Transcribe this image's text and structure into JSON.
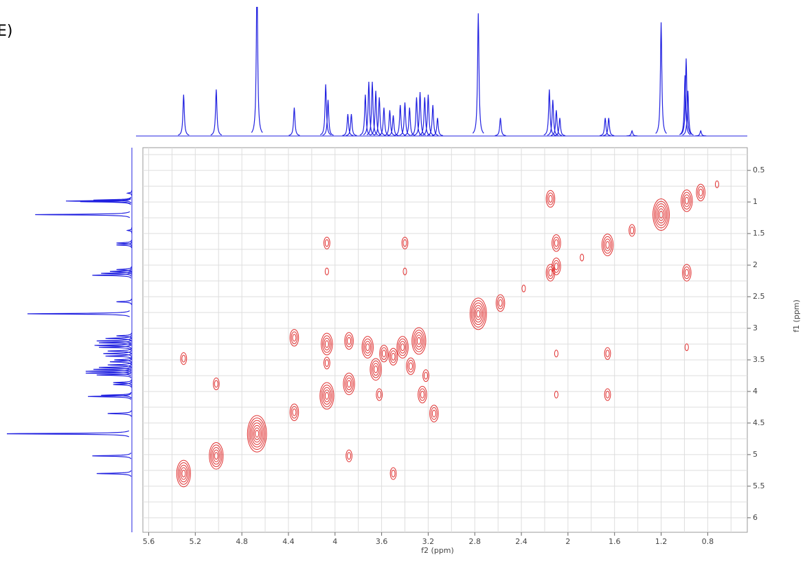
{
  "chart_data": {
    "type": "contour",
    "title": "E)",
    "x_label": "f2 (ppm)",
    "y_label": "f1 (ppm)",
    "xlim": [
      5.65,
      0.46
    ],
    "ylim": [
      6.23,
      0.14
    ],
    "xticks": [
      5.6,
      5.2,
      4.8,
      4.4,
      4.0,
      3.6,
      3.2,
      2.8,
      2.4,
      2.0,
      1.6,
      1.2,
      0.8
    ],
    "xgrid": [
      5.6,
      5.4,
      5.2,
      5.0,
      4.8,
      4.6,
      4.4,
      4.2,
      4.0,
      3.8,
      3.6,
      3.4,
      3.2,
      3.0,
      2.8,
      2.6,
      2.4,
      2.2,
      2.0,
      1.8,
      1.6,
      1.4,
      1.2,
      1.0,
      0.8,
      0.6
    ],
    "yticks": [
      0.5,
      1.0,
      1.5,
      2.0,
      2.5,
      3.0,
      3.5,
      4.0,
      4.5,
      5.0,
      5.5,
      6.0
    ],
    "ygrid": [
      0.25,
      0.5,
      0.75,
      1.0,
      1.25,
      1.5,
      1.75,
      2.0,
      2.25,
      2.5,
      2.75,
      3.0,
      3.25,
      3.5,
      3.75,
      4.0,
      4.25,
      4.5,
      4.75,
      5.0,
      5.25,
      5.5,
      5.75,
      6.0
    ],
    "grid": true,
    "contour_color": "#e03030",
    "spectrum_color": "#2020e0",
    "spectrum": {
      "ppm": [
        5.3,
        5.02,
        4.67,
        4.35,
        4.08,
        4.06,
        3.89,
        3.86,
        3.74,
        3.71,
        3.68,
        3.65,
        3.62,
        3.58,
        3.53,
        3.5,
        3.44,
        3.4,
        3.36,
        3.3,
        3.27,
        3.23,
        3.2,
        3.16,
        3.12,
        2.77,
        2.58,
        2.16,
        2.13,
        2.1,
        2.07,
        1.68,
        1.65,
        1.45,
        1.2,
        0.995,
        0.985,
        0.97,
        0.86
      ],
      "intensity": [
        32,
        36,
        120,
        22,
        40,
        28,
        17,
        17,
        32,
        42,
        42,
        35,
        30,
        22,
        20,
        16,
        24,
        26,
        22,
        30,
        34,
        30,
        32,
        24,
        14,
        95,
        14,
        36,
        28,
        20,
        14,
        14,
        14,
        4,
        88,
        47,
        60,
        35,
        4
      ]
    },
    "cross_peaks": {
      "f2": [
        5.3,
        5.3,
        5.02,
        5.02,
        4.67,
        4.35,
        4.35,
        4.07,
        4.07,
        4.07,
        4.07,
        4.07,
        3.88,
        3.88,
        3.88,
        3.72,
        3.65,
        3.58,
        3.5,
        3.42,
        3.35,
        3.28,
        3.62,
        3.4,
        3.4,
        3.5,
        3.25,
        3.22,
        3.15,
        2.77,
        2.58,
        2.38,
        2.15,
        2.15,
        2.1,
        2.1,
        2.1,
        2.1,
        1.88,
        1.66,
        1.66,
        1.66,
        1.45,
        1.2,
        0.98,
        0.98,
        0.98,
        0.86,
        0.72
      ],
      "f1": [
        5.3,
        3.48,
        5.02,
        3.88,
        4.67,
        3.15,
        4.33,
        1.65,
        2.1,
        3.25,
        3.55,
        4.07,
        3.2,
        3.88,
        5.02,
        3.3,
        3.65,
        3.4,
        3.45,
        3.3,
        3.6,
        3.2,
        4.05,
        1.65,
        2.1,
        5.3,
        4.05,
        3.75,
        4.35,
        2.77,
        2.6,
        2.37,
        0.95,
        2.12,
        1.65,
        2.02,
        3.4,
        4.05,
        1.88,
        1.68,
        3.4,
        4.05,
        1.45,
        1.2,
        0.98,
        2.12,
        3.3,
        0.85,
        0.72
      ],
      "intensity": [
        5,
        2,
        5,
        2,
        7,
        3,
        3,
        2,
        1,
        4,
        2,
        5,
        3,
        4,
        2,
        4,
        4,
        3,
        3,
        4,
        3,
        5,
        2,
        2,
        1,
        2,
        3,
        2,
        3,
        6,
        3,
        1,
        3,
        3,
        3,
        3,
        1,
        1,
        1,
        4,
        2,
        2,
        2,
        6,
        4,
        3,
        1,
        3,
        1
      ]
    }
  }
}
